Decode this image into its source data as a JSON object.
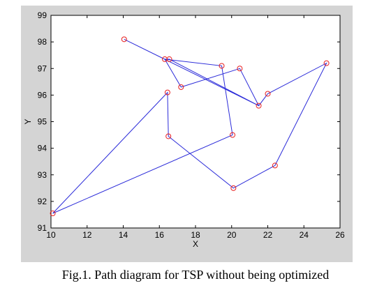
{
  "caption": "Fig.1. Path diagram for TSP without being optimized",
  "chart_data": {
    "type": "line",
    "title": "",
    "xlabel": "X",
    "ylabel": "Y",
    "xlim": [
      10,
      26
    ],
    "ylim": [
      91,
      99
    ],
    "xticks": [
      10,
      12,
      14,
      16,
      18,
      20,
      22,
      24,
      26
    ],
    "yticks": [
      91,
      92,
      93,
      94,
      95,
      96,
      97,
      98,
      99
    ],
    "grid": false,
    "colors": {
      "line": "#2b2bd9",
      "marker": "#e82020",
      "figure_bg": "#d4d4d4",
      "axes_bg": "#ffffff"
    },
    "marker": "circle",
    "series": [
      {
        "points": [
          [
            10.1,
            91.55
          ],
          [
            16.45,
            96.1
          ],
          [
            16.5,
            94.45
          ],
          [
            20.1,
            92.5
          ],
          [
            22.4,
            93.35
          ],
          [
            25.25,
            97.2
          ],
          [
            22.0,
            96.05
          ],
          [
            21.5,
            95.6
          ],
          [
            16.55,
            97.35
          ],
          [
            16.3,
            97.35
          ],
          [
            17.2,
            96.3
          ],
          [
            20.45,
            97.0
          ],
          [
            21.5,
            95.6
          ],
          [
            14.05,
            98.1
          ],
          [
            16.3,
            97.35
          ],
          [
            19.45,
            97.1
          ],
          [
            20.05,
            94.5
          ],
          [
            10.1,
            91.55
          ]
        ]
      }
    ]
  }
}
